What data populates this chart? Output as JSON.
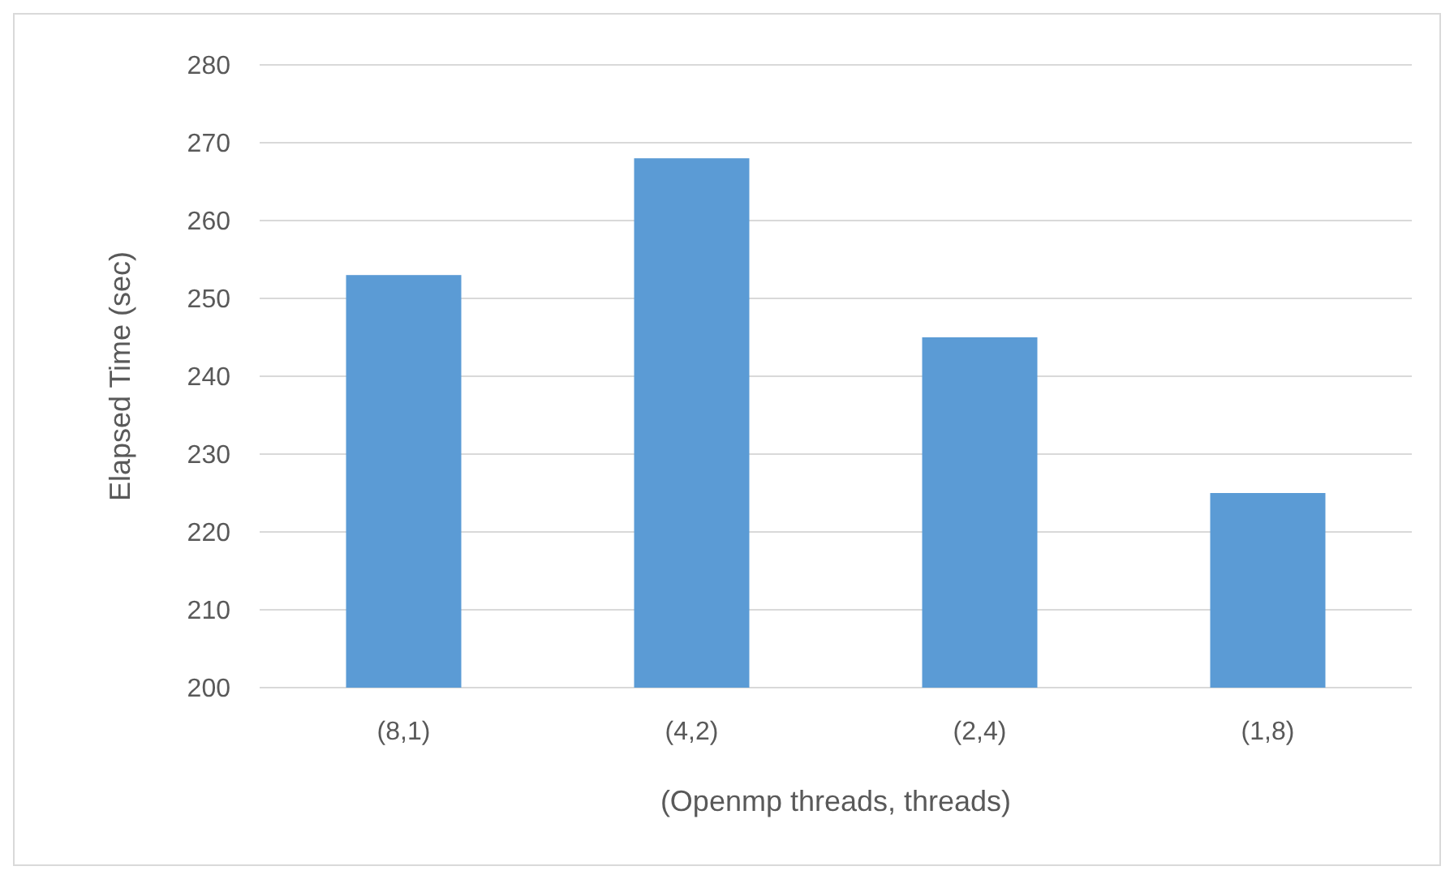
{
  "chart_data": {
    "type": "bar",
    "xlabel": "(Openmp threads, threads)",
    "ylabel": "Elapsed Time (sec)",
    "categories": [
      "(8,1)",
      "(4,2)",
      "(2,4)",
      "(1,8)"
    ],
    "values": [
      253,
      268,
      245,
      225
    ],
    "color": "#5b9bd5",
    "ylim": [
      200,
      280
    ],
    "yticks": [
      200,
      210,
      220,
      230,
      240,
      250,
      260,
      270,
      280
    ],
    "grid": "y"
  }
}
